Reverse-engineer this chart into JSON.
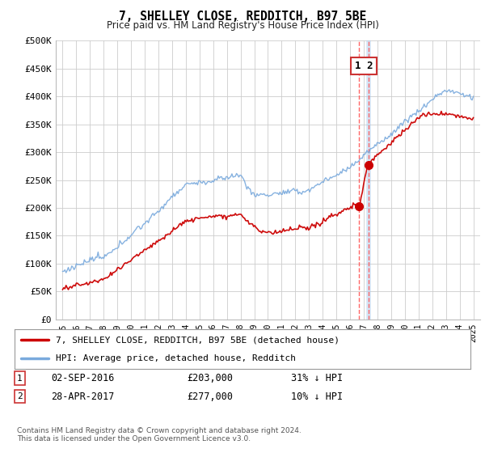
{
  "title": "7, SHELLEY CLOSE, REDDITCH, B97 5BE",
  "subtitle": "Price paid vs. HM Land Registry's House Price Index (HPI)",
  "legend_entries": [
    "7, SHELLEY CLOSE, REDDITCH, B97 5BE (detached house)",
    "HPI: Average price, detached house, Redditch"
  ],
  "legend_colors": [
    "#cc0000",
    "#7aaadd"
  ],
  "transaction1": {
    "label": "1",
    "date": "02-SEP-2016",
    "price": "£203,000",
    "hpi": "31% ↓ HPI"
  },
  "transaction2": {
    "label": "2",
    "date": "28-APR-2017",
    "price": "£277,000",
    "hpi": "10% ↓ HPI"
  },
  "vline1_x": 2016.67,
  "vline2_x": 2017.33,
  "point1": [
    2016.67,
    203000
  ],
  "point2": [
    2017.33,
    277000
  ],
  "ylim": [
    0,
    500000
  ],
  "xlim_start": 1994.5,
  "xlim_end": 2025.5,
  "yticks": [
    0,
    50000,
    100000,
    150000,
    200000,
    250000,
    300000,
    350000,
    400000,
    450000,
    500000
  ],
  "ytick_labels": [
    "£0",
    "£50K",
    "£100K",
    "£150K",
    "£200K",
    "£250K",
    "£300K",
    "£350K",
    "£400K",
    "£450K",
    "£500K"
  ],
  "background_color": "#ffffff",
  "grid_color": "#cccccc",
  "footer": "Contains HM Land Registry data © Crown copyright and database right 2024.\nThis data is licensed under the Open Government Licence v3.0."
}
